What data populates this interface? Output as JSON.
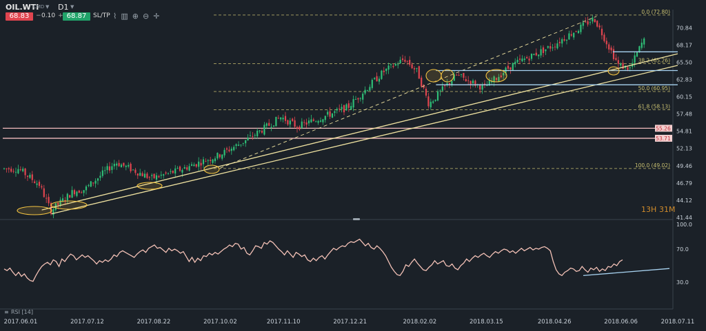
{
  "toolbar": {
    "symbol": "OIL.WTI",
    "market": "CMD",
    "timeframe": "D1",
    "sell_price": "68.83",
    "spread": "0.10",
    "buy_price": "68.87",
    "sltp_label": "SL/TP",
    "icons": [
      "line-chart-icon",
      "chart-type-icon",
      "zoom-in-icon",
      "zoom-out-icon",
      "crosshair-icon"
    ]
  },
  "timer": {
    "hours": "13",
    "h": "H",
    "minutes": "31",
    "m": "M"
  },
  "rsi_label": "RSI [14]",
  "colors": {
    "bull": "#2fbf77",
    "bear": "#e0454f",
    "rsi": "#f3c1b6",
    "trend": "#f0e3a1",
    "fib": "#c9c070",
    "hline": "#f4bdbd",
    "blue": "#a9d4f2",
    "circle": "#f5c542"
  },
  "chart_data": [
    {
      "type": "candlestick",
      "symbol": "OIL.WTI",
      "timeframe": "D1",
      "x": [
        "2017.06.01",
        "2017.07.12",
        "2017.08.22",
        "2017.10.02",
        "2017.11.10",
        "2017.12.21",
        "2018.02.02",
        "2018.03.15",
        "2018.04.26",
        "2018.06.06",
        "2018.07.11"
      ],
      "y_ticks": [
        70.84,
        68.17,
        65.5,
        62.83,
        60.15,
        57.48,
        54.81,
        52.13,
        49.46,
        46.79,
        44.12,
        41.44
      ],
      "ylim": [
        41.44,
        73.0
      ],
      "price_path": [
        [
          "2017.06.01",
          49.0
        ],
        [
          "2017.06.14",
          46.5
        ],
        [
          "2017.06.21",
          42.5
        ],
        [
          "2017.07.05",
          45.5
        ],
        [
          "2017.07.12",
          45.8
        ],
        [
          "2017.07.31",
          50.0
        ],
        [
          "2017.08.22",
          47.5
        ],
        [
          "2017.09.05",
          48.5
        ],
        [
          "2017.10.02",
          51.0
        ],
        [
          "2017.10.20",
          53.5
        ],
        [
          "2017.11.10",
          57.0
        ],
        [
          "2017.11.20",
          55.5
        ],
        [
          "2017.12.21",
          58.5
        ],
        [
          "2018.01.12",
          64.0
        ],
        [
          "2018.01.25",
          66.0
        ],
        [
          "2018.02.02",
          64.0
        ],
        [
          "2018.02.09",
          59.0
        ],
        [
          "2018.02.26",
          63.5
        ],
        [
          "2018.03.15",
          61.5
        ],
        [
          "2018.04.01",
          65.0
        ],
        [
          "2018.04.26",
          68.0
        ],
        [
          "2018.05.22",
          72.3
        ],
        [
          "2018.06.06",
          65.0
        ],
        [
          "2018.06.13",
          64.5
        ],
        [
          "2018.06.21",
          68.8
        ]
      ],
      "price_labels": [
        {
          "label": "55.26",
          "value": 55.26
        },
        {
          "label": "53.71",
          "value": 53.71
        }
      ],
      "fibonacci": [
        {
          "label": "0.0 (72.80)",
          "value": 72.8
        },
        {
          "label": "38.2 (65.26)",
          "value": 65.26
        },
        {
          "label": "50.0 (60.95)",
          "value": 60.95
        },
        {
          "label": "61.8 (58.13)",
          "value": 58.13
        },
        {
          "label": "100.0 (49.02)",
          "value": 49.02
        }
      ],
      "horizontal_lines": [
        55.26,
        53.71
      ],
      "trendlines": [
        {
          "from": [
            "2017.06.14",
            42.6
          ],
          "to": [
            "2018.07.11",
            66.8
          ]
        },
        {
          "from": [
            "2017.06.20",
            42.0
          ],
          "to": [
            "2018.07.11",
            65.0
          ]
        },
        {
          "from": [
            "2017.10.02",
            49.1
          ],
          "to": [
            "2018.05.22",
            72.6
          ],
          "style": "dashed"
        }
      ],
      "support_lines": [
        {
          "from": [
            "2018.06.01",
            67.1
          ],
          "to": [
            "2018.07.11",
            67.1
          ]
        },
        {
          "from": [
            "2018.02.12",
            64.2
          ],
          "to": [
            "2018.07.11",
            64.2
          ]
        },
        {
          "from": [
            "2018.02.12",
            62.0
          ],
          "to": [
            "2018.07.11",
            62.0
          ]
        }
      ]
    },
    {
      "type": "line",
      "title": "RSI [14]",
      "y_ticks": [
        100.0,
        70.0,
        30.0
      ],
      "ylim": [
        0,
        100
      ],
      "series": [
        {
          "values": [
            46,
            44,
            47,
            42,
            38,
            42,
            37,
            40,
            35,
            32,
            31,
            38,
            44,
            49,
            52,
            54,
            51,
            57,
            55,
            49,
            58,
            55,
            60,
            64,
            62,
            57,
            60,
            63,
            60,
            62,
            59,
            56,
            52,
            56,
            54,
            57,
            55,
            58,
            63,
            61,
            66,
            68,
            66,
            64,
            62,
            60,
            64,
            67,
            69,
            66,
            71,
            73,
            75,
            71,
            72,
            69,
            66,
            71,
            68,
            70,
            68,
            65,
            67,
            61,
            55,
            60,
            54,
            59,
            56,
            62,
            61,
            65,
            63,
            66,
            64,
            67,
            70,
            72,
            75,
            73,
            77,
            76,
            70,
            72,
            65,
            63,
            68,
            74,
            73,
            71,
            78,
            76,
            80,
            78,
            74,
            70,
            67,
            63,
            68,
            64,
            60,
            66,
            64,
            61,
            63,
            57,
            55,
            59,
            56,
            60,
            62,
            58,
            63,
            67,
            71,
            69,
            72,
            74,
            73,
            77,
            79,
            78,
            80,
            82,
            78,
            74,
            77,
            72,
            70,
            74,
            71,
            67,
            62,
            55,
            48,
            43,
            39,
            38,
            43,
            51,
            49,
            54,
            58,
            53,
            49,
            45,
            44,
            48,
            51,
            56,
            52,
            54,
            56,
            50,
            49,
            52,
            47,
            45,
            50,
            53,
            58,
            55,
            59,
            62,
            60,
            63,
            65,
            62,
            60,
            64,
            67,
            65,
            68,
            70,
            69,
            66,
            68,
            65,
            68,
            71,
            68,
            70,
            72,
            69,
            71,
            70,
            72,
            73,
            71,
            68,
            55,
            45,
            40,
            38,
            42,
            44,
            47,
            46,
            43,
            44,
            49,
            45,
            42,
            47,
            45,
            48,
            43,
            46,
            44,
            49,
            48,
            52,
            50,
            55,
            57
          ]
        }
      ],
      "trendline": {
        "from": [
          0.0,
          38.0
        ],
        "to": [
          1.0,
          46.5
        ]
      }
    }
  ]
}
